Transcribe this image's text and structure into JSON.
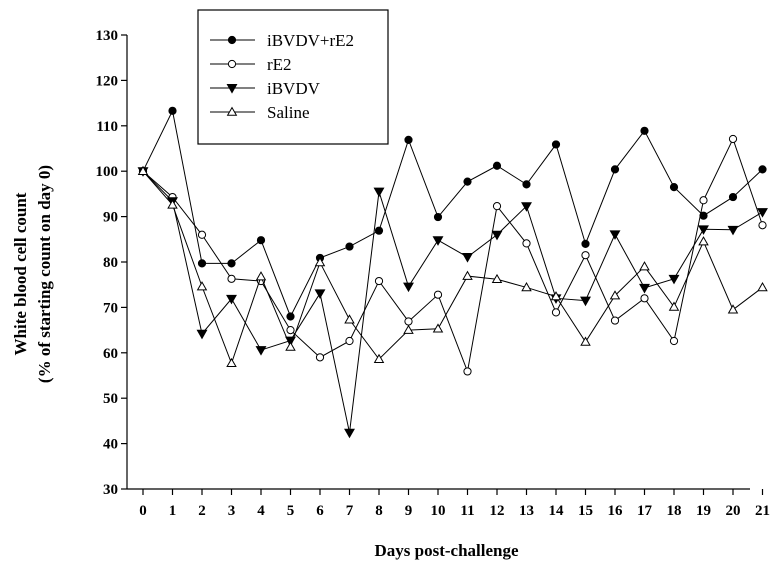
{
  "chart_data": {
    "type": "line",
    "title": "",
    "xlabel": "Days post-challenge",
    "ylabel_line1": "White blood cell count",
    "ylabel_line2": "(% of starting count on day 0)",
    "xlim": [
      0,
      21
    ],
    "ylim": [
      30,
      130
    ],
    "x_ticks": [
      0,
      1,
      2,
      3,
      4,
      5,
      6,
      7,
      8,
      9,
      10,
      11,
      12,
      13,
      14,
      15,
      16,
      17,
      18,
      19,
      20,
      21
    ],
    "y_ticks": [
      30,
      40,
      50,
      60,
      70,
      80,
      90,
      100,
      110,
      120,
      130
    ],
    "grid": false,
    "legend_position": "top-left",
    "x": [
      0,
      1,
      2,
      3,
      4,
      5,
      6,
      7,
      8,
      9,
      10,
      11,
      12,
      13,
      14,
      15,
      16,
      17,
      18,
      19,
      20,
      21
    ],
    "series": [
      {
        "name": "iBVDV+rE2",
        "marker": "filled-circle",
        "values": [
          100,
          113.3,
          79.7,
          79.7,
          84.8,
          68,
          80.9,
          83.4,
          86.9,
          106.9,
          89.9,
          97.7,
          101.2,
          97.1,
          105.9,
          84,
          100.4,
          108.9,
          96.5,
          90.2,
          94.3,
          100.4
        ]
      },
      {
        "name": "rE2",
        "marker": "open-circle",
        "values": [
          100,
          94.3,
          86,
          76.3,
          75.8,
          65,
          59,
          62.6,
          75.8,
          66.9,
          72.8,
          55.9,
          92.3,
          84.1,
          68.9,
          81.5,
          67.1,
          72,
          62.6,
          93.6,
          107.1,
          88.1
        ]
      },
      {
        "name": "iBVDV",
        "marker": "filled-triangle-down",
        "values": [
          100,
          93.4,
          64.2,
          71.9,
          60.6,
          62.7,
          73.1,
          42.4,
          95.5,
          74.6,
          84.8,
          81.1,
          86,
          92.3,
          72,
          71.5,
          86.1,
          74.3,
          76.3,
          87.2,
          87.1,
          91
        ]
      },
      {
        "name": "Saline",
        "marker": "open-triangle-up",
        "values": [
          100,
          92.6,
          74.6,
          57.7,
          76.8,
          61.3,
          79.9,
          67.3,
          58.6,
          65,
          65.3,
          76.9,
          76.2,
          74.4,
          72.4,
          62.4,
          72.6,
          79,
          70.1,
          84.5,
          69.5,
          74.4
        ]
      }
    ]
  }
}
